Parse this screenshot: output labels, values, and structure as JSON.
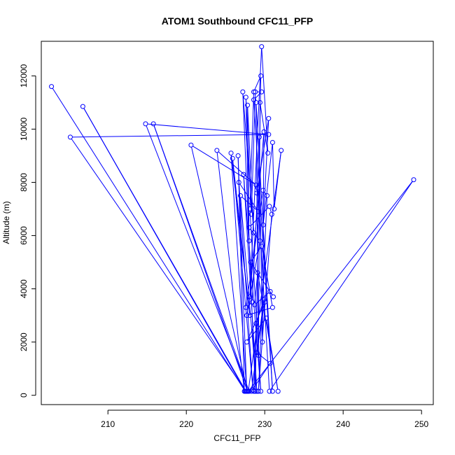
{
  "chart_data": {
    "type": "line",
    "title": "ATOM1 Southbound CFC11_PFP",
    "xlabel": "CFC11_PFP",
    "ylabel": "Altitude (m)",
    "xlim": [
      201.5,
      251.5
    ],
    "ylim": [
      -350,
      13300
    ],
    "x_ticks": [
      210,
      220,
      230,
      240,
      250
    ],
    "y_ticks": [
      0,
      2000,
      4000,
      6000,
      8000,
      10000,
      12000
    ],
    "grid": false,
    "legend": "none",
    "series_color": "#0000ff",
    "marker": "open-circle",
    "series": [
      {
        "x": [
          202.8,
          227.5,
          206.8,
          227.6,
          205.2,
          230.5,
          214.8,
          228.0,
          215.8,
          227.8,
          220.6,
          228.9,
          223.9,
          227.4,
          226.6,
          227.7,
          225.7,
          228.1,
          225.9,
          228.5,
          226.7,
          229.2,
          226.9,
          229.0,
          227.3,
          229.5,
          228.1,
          228.6,
          229.5,
          228.8,
          227.2,
          228.6,
          227.8,
          228.0,
          227.6,
          228.3,
          228.8,
          229.6,
          228.6,
          231.0,
          228.9,
          229.2,
          229.4,
          230.4,
          229.6,
          228.1,
          229.9,
          229.7,
          229.3,
          229.0,
          230.5,
          229.8,
          231.0,
          231.2,
          232.1,
          227.9,
          249.0,
          230.6,
          229.1,
          228.4,
          227.6,
          229.8,
          230.3,
          229.2,
          230.9,
          230.6,
          228.0,
          229.4,
          227.7,
          231.0,
          229.6,
          228.2,
          231.1,
          230.7,
          228.7,
          229.1,
          231.7,
          230.2,
          227.7,
          230.0,
          229.0,
          230.7,
          228.3,
          229.9,
          228.9,
          228.6
        ],
        "y": [
          11600,
          150,
          10850,
          150,
          9700,
          9800,
          10200,
          150,
          10200,
          150,
          9400,
          7900,
          9200,
          150,
          9000,
          150,
          9100,
          3000,
          8900,
          200,
          8000,
          6900,
          7500,
          150,
          8300,
          150,
          7000,
          11400,
          12000,
          150,
          11400,
          6100,
          10900,
          5800,
          11200,
          6800,
          11400,
          11400,
          11100,
          150,
          11000,
          1500,
          11000,
          9100,
          13100,
          3700,
          9900,
          2000,
          9700,
          7600,
          10400,
          6400,
          9500,
          7000,
          9200,
          150,
          8100,
          150,
          7800,
          3500,
          3300,
          7700,
          7500,
          150,
          6800,
          7100,
          6300,
          5800,
          3000,
          3300,
          5600,
          5000,
          3700,
          3900,
          3400,
          4600,
          150,
          2900,
          2000,
          3500,
          1600,
          1200,
          150,
          3600,
          2700,
          150
        ]
      }
    ]
  }
}
